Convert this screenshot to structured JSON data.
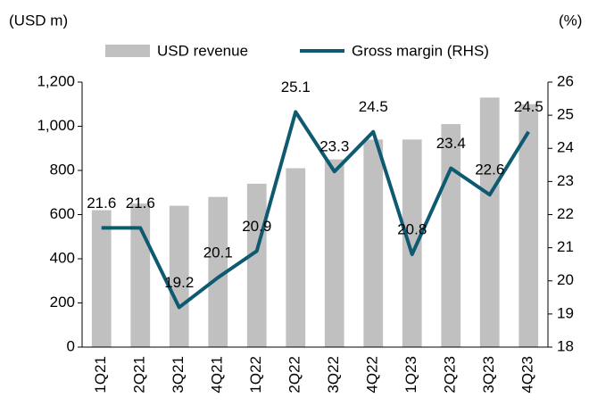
{
  "chart_data": {
    "type": "bar-line",
    "y_label": "(USD m)",
    "y2_label": "(%)",
    "categories": [
      "1Q21",
      "2Q21",
      "3Q21",
      "4Q21",
      "1Q22",
      "2Q22",
      "3Q22",
      "4Q22",
      "1Q23",
      "2Q23",
      "3Q23",
      "4Q23"
    ],
    "series": [
      {
        "name": "USD revenue",
        "type": "bar",
        "color": "#c0c0c0",
        "values": [
          620,
          650,
          640,
          680,
          740,
          810,
          850,
          940,
          940,
          1010,
          1130,
          1100
        ]
      },
      {
        "name": "Gross margin (RHS)",
        "type": "line",
        "axis": "y2",
        "color": "#0e5a70",
        "values": [
          21.6,
          21.6,
          19.2,
          20.1,
          20.9,
          25.1,
          23.3,
          24.5,
          20.8,
          23.4,
          22.6,
          24.5
        ]
      }
    ],
    "ylim": [
      0,
      1200
    ],
    "yticks": [
      0,
      200,
      400,
      600,
      800,
      {
        "value": 1000,
        "label": "1,000"
      },
      {
        "value": 1200,
        "label": "1,200"
      }
    ],
    "y2lim": [
      18,
      26
    ],
    "y2ticks": [
      18,
      19,
      20,
      21,
      22,
      23,
      24,
      25,
      26
    ]
  }
}
